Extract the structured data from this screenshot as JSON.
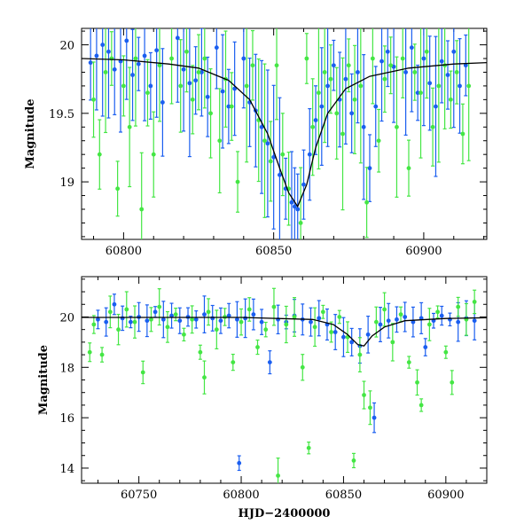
{
  "colors": {
    "blue": "#1a5ef0",
    "green": "#44e644",
    "model": "#000000"
  },
  "chart_data": [
    {
      "type": "scatter",
      "ylabel": "Magnitude",
      "xlabel": "",
      "xlim": [
        60786,
        60921
      ],
      "ylim": [
        20.12,
        18.58
      ],
      "y_inverted": true,
      "x_ticks": [
        60800,
        60850,
        60900
      ],
      "y_ticks": [
        19,
        19.5,
        20
      ],
      "y_tick_labels": [
        "19",
        "19.5",
        "20"
      ],
      "error_bars": true,
      "series": [
        {
          "color": "blue",
          "points": [
            [
              60789,
              19.87
            ],
            [
              60791,
              19.92
            ],
            [
              60793,
              20.0
            ],
            [
              60795,
              19.95
            ],
            [
              60797,
              19.82
            ],
            [
              60799,
              19.88
            ],
            [
              60801,
              20.03
            ],
            [
              60803,
              19.78
            ],
            [
              60805,
              19.86
            ],
            [
              60807,
              19.92
            ],
            [
              60809,
              19.7
            ],
            [
              60811,
              19.96
            ],
            [
              60813,
              19.58
            ],
            [
              60818,
              20.05
            ],
            [
              60820,
              19.82
            ],
            [
              60822,
              19.72
            ],
            [
              60824,
              19.74
            ],
            [
              60826,
              19.8
            ],
            [
              60828,
              19.62
            ],
            [
              60831,
              19.98
            ],
            [
              60833,
              19.66
            ],
            [
              60835,
              19.55
            ],
            [
              60837,
              19.68
            ],
            [
              60840,
              19.9
            ],
            [
              60842,
              19.58
            ],
            [
              60844,
              19.52
            ],
            [
              60846,
              19.4
            ],
            [
              60848,
              19.28
            ],
            [
              60850,
              19.18
            ],
            [
              60852,
              19.05
            ],
            [
              60854,
              18.95
            ],
            [
              60856,
              18.85
            ],
            [
              60857,
              18.82
            ],
            [
              60858,
              18.8
            ],
            [
              60860,
              18.98
            ],
            [
              60862,
              19.2
            ],
            [
              60864,
              19.45
            ],
            [
              60866,
              19.55
            ],
            [
              60868,
              19.7
            ],
            [
              60870,
              19.85
            ],
            [
              60872,
              19.6
            ],
            [
              60874,
              19.75
            ],
            [
              60876,
              19.5
            ],
            [
              60878,
              19.8
            ],
            [
              60880,
              19.4
            ],
            [
              60882,
              19.1
            ],
            [
              60884,
              19.55
            ],
            [
              60886,
              19.88
            ],
            [
              60888,
              19.95
            ],
            [
              60890,
              19.84
            ],
            [
              60894,
              19.8
            ],
            [
              60896,
              19.98
            ],
            [
              60898,
              19.65
            ],
            [
              60900,
              19.9
            ],
            [
              60902,
              19.72
            ],
            [
              60904,
              19.55
            ],
            [
              60906,
              19.88
            ],
            [
              60908,
              19.78
            ],
            [
              60910,
              19.95
            ],
            [
              60912,
              19.7
            ],
            [
              60914,
              19.85
            ]
          ]
        },
        {
          "color": "green",
          "points": [
            [
              60790,
              19.6
            ],
            [
              60792,
              19.2
            ],
            [
              60794,
              19.8
            ],
            [
              60796,
              19.9
            ],
            [
              60798,
              18.95
            ],
            [
              60800,
              19.7
            ],
            [
              60802,
              19.4
            ],
            [
              60804,
              19.9
            ],
            [
              60806,
              18.8
            ],
            [
              60808,
              19.65
            ],
            [
              60810,
              19.2
            ],
            [
              60812,
              19.85
            ],
            [
              60816,
              19.9
            ],
            [
              60819,
              19.7
            ],
            [
              60821,
              19.95
            ],
            [
              60823,
              19.6
            ],
            [
              60825,
              19.8
            ],
            [
              60827,
              19.9
            ],
            [
              60829,
              19.5
            ],
            [
              60832,
              19.3
            ],
            [
              60834,
              19.75
            ],
            [
              60836,
              19.55
            ],
            [
              60838,
              19.0
            ],
            [
              60841,
              19.7
            ],
            [
              60843,
              19.85
            ],
            [
              60845,
              19.45
            ],
            [
              60847,
              19.3
            ],
            [
              60849,
              19.15
            ],
            [
              60851,
              19.85
            ],
            [
              60853,
              19.2
            ],
            [
              60855,
              18.95
            ],
            [
              60859,
              18.7
            ],
            [
              60861,
              19.9
            ],
            [
              60863,
              19.4
            ],
            [
              60865,
              19.65
            ],
            [
              60867,
              19.8
            ],
            [
              60869,
              19.75
            ],
            [
              60871,
              19.5
            ],
            [
              60873,
              19.35
            ],
            [
              60875,
              19.85
            ],
            [
              60877,
              19.6
            ],
            [
              60879,
              19.7
            ],
            [
              60881,
              18.85
            ],
            [
              60883,
              19.9
            ],
            [
              60885,
              19.3
            ],
            [
              60887,
              19.75
            ],
            [
              60889,
              19.85
            ],
            [
              60891,
              19.4
            ],
            [
              60893,
              19.9
            ],
            [
              60895,
              19.1
            ],
            [
              60897,
              19.8
            ],
            [
              60899,
              19.65
            ],
            [
              60901,
              19.95
            ],
            [
              60903,
              19.4
            ],
            [
              60905,
              19.7
            ],
            [
              60907,
              19.85
            ],
            [
              60909,
              19.6
            ],
            [
              60911,
              19.8
            ],
            [
              60913,
              19.35
            ],
            [
              60915,
              19.7
            ]
          ]
        }
      ],
      "model_curve": [
        [
          60786,
          19.9
        ],
        [
          60800,
          19.89
        ],
        [
          60815,
          19.86
        ],
        [
          60825,
          19.83
        ],
        [
          60835,
          19.74
        ],
        [
          60842,
          19.6
        ],
        [
          60848,
          19.35
        ],
        [
          60852,
          19.1
        ],
        [
          60855,
          18.92
        ],
        [
          60858,
          18.82
        ],
        [
          60861,
          18.98
        ],
        [
          60864,
          19.25
        ],
        [
          60868,
          19.5
        ],
        [
          60874,
          19.68
        ],
        [
          60882,
          19.77
        ],
        [
          60895,
          19.83
        ],
        [
          60910,
          19.86
        ],
        [
          60921,
          19.87
        ]
      ]
    },
    {
      "type": "scatter",
      "ylabel": "Magnitude",
      "xlabel": "HJD−2400000",
      "xlim": [
        60722,
        60920
      ],
      "ylim": [
        21.6,
        13.4
      ],
      "y_inverted": true,
      "x_ticks": [
        60750,
        60800,
        60850,
        60900
      ],
      "y_ticks": [
        14,
        16,
        18,
        20
      ],
      "y_tick_labels": [
        "14",
        "16",
        "18",
        "20"
      ],
      "error_bars": true,
      "series": [
        {
          "color": "blue",
          "points": [
            [
              60730,
              19.9
            ],
            [
              60734,
              19.8
            ],
            [
              60738,
              20.5
            ],
            [
              60742,
              19.95
            ],
            [
              60746,
              19.8
            ],
            [
              60750,
              20.0
            ],
            [
              60754,
              19.85
            ],
            [
              60758,
              20.2
            ],
            [
              60762,
              19.9
            ],
            [
              60766,
              20.05
            ],
            [
              60770,
              19.85
            ],
            [
              60774,
              20.0
            ],
            [
              60778,
              19.9
            ],
            [
              60782,
              20.1
            ],
            [
              60786,
              19.95
            ],
            [
              60790,
              19.85
            ],
            [
              60794,
              20.05
            ],
            [
              60798,
              19.9
            ],
            [
              60799,
              14.2
            ],
            [
              60802,
              19.95
            ],
            [
              60806,
              20.1
            ],
            [
              60810,
              19.8
            ],
            [
              60814,
              18.2
            ],
            [
              60818,
              19.9
            ],
            [
              60822,
              19.8
            ],
            [
              60826,
              20.05
            ],
            [
              60830,
              19.9
            ],
            [
              60834,
              19.8
            ],
            [
              60838,
              19.95
            ],
            [
              60842,
              19.7
            ],
            [
              60846,
              19.4
            ],
            [
              60850,
              19.2
            ],
            [
              60854,
              19.0
            ],
            [
              60858,
              18.85
            ],
            [
              60862,
              19.3
            ],
            [
              60865,
              16.0
            ],
            [
              60868,
              19.7
            ],
            [
              60872,
              19.85
            ],
            [
              60876,
              19.9
            ],
            [
              60880,
              20.0
            ],
            [
              60884,
              19.8
            ],
            [
              60888,
              19.95
            ],
            [
              60890,
              18.8
            ],
            [
              60894,
              19.85
            ],
            [
              60898,
              20.05
            ],
            [
              60902,
              19.9
            ],
            [
              60906,
              19.8
            ],
            [
              60910,
              19.95
            ],
            [
              60914,
              19.85
            ]
          ]
        },
        {
          "color": "green",
          "points": [
            [
              60726,
              18.6
            ],
            [
              60728,
              19.7
            ],
            [
              60732,
              18.5
            ],
            [
              60736,
              20.2
            ],
            [
              60740,
              19.5
            ],
            [
              60744,
              20.3
            ],
            [
              60748,
              19.8
            ],
            [
              60752,
              17.8
            ],
            [
              60756,
              19.9
            ],
            [
              60760,
              20.4
            ],
            [
              60764,
              19.6
            ],
            [
              60768,
              20.1
            ],
            [
              60772,
              19.3
            ],
            [
              60776,
              19.9
            ],
            [
              60780,
              18.6
            ],
            [
              60782,
              17.6
            ],
            [
              60784,
              20.2
            ],
            [
              60788,
              19.5
            ],
            [
              60792,
              20.0
            ],
            [
              60796,
              18.2
            ],
            [
              60800,
              19.8
            ],
            [
              60804,
              20.3
            ],
            [
              60808,
              18.8
            ],
            [
              60812,
              19.5
            ],
            [
              60816,
              20.4
            ],
            [
              60818,
              13.7
            ],
            [
              60822,
              19.7
            ],
            [
              60826,
              20.0
            ],
            [
              60830,
              18.0
            ],
            [
              60833,
              14.8
            ],
            [
              60836,
              19.6
            ],
            [
              60840,
              20.2
            ],
            [
              60844,
              19.4
            ],
            [
              60848,
              20.0
            ],
            [
              60852,
              19.2
            ],
            [
              60855,
              14.3
            ],
            [
              60858,
              18.5
            ],
            [
              60860,
              16.9
            ],
            [
              60863,
              16.4
            ],
            [
              60866,
              19.8
            ],
            [
              60870,
              20.3
            ],
            [
              60874,
              19.0
            ],
            [
              60878,
              20.1
            ],
            [
              60882,
              18.2
            ],
            [
              60886,
              17.4
            ],
            [
              60888,
              16.5
            ],
            [
              60892,
              19.7
            ],
            [
              60896,
              20.2
            ],
            [
              60900,
              18.6
            ],
            [
              60903,
              17.4
            ],
            [
              60906,
              20.4
            ],
            [
              60910,
              19.9
            ],
            [
              60914,
              20.6
            ]
          ]
        }
      ],
      "model_curve": [
        [
          60722,
          19.98
        ],
        [
          60800,
          19.98
        ],
        [
          60835,
          19.9
        ],
        [
          60845,
          19.7
        ],
        [
          60852,
          19.3
        ],
        [
          60857,
          18.9
        ],
        [
          60860,
          18.85
        ],
        [
          60864,
          19.25
        ],
        [
          60870,
          19.6
        ],
        [
          60880,
          19.85
        ],
        [
          60900,
          19.94
        ],
        [
          60920,
          19.97
        ]
      ]
    }
  ]
}
